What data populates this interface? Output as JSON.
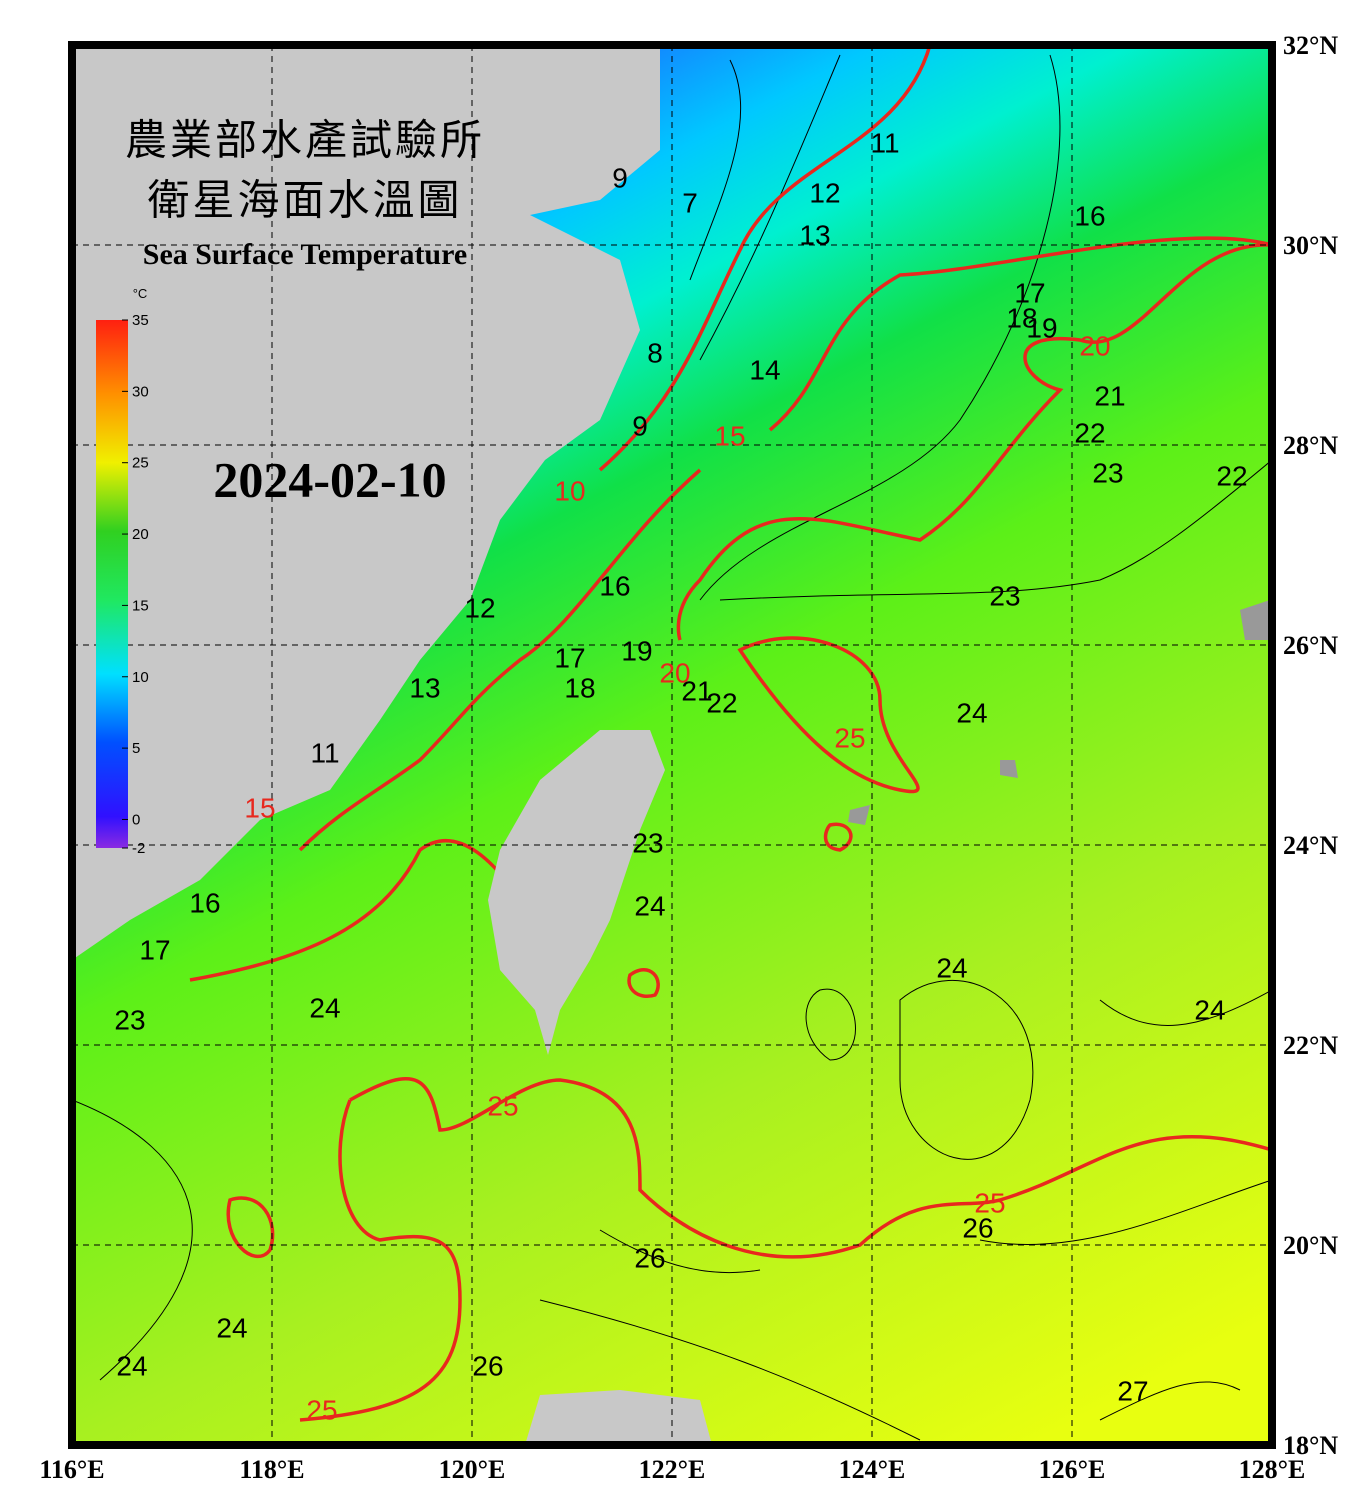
{
  "title_zh_1": "農業部水產試驗所",
  "title_zh_2": "衛星海面水溫圖",
  "title_en": "Sea Surface Temperature",
  "date": "2024-02-10",
  "colorbar": {
    "unit": "°C",
    "range": [
      -2,
      35
    ],
    "ticks": [
      -2,
      0,
      5,
      10,
      15,
      20,
      25,
      30,
      35
    ]
  },
  "map": {
    "lon_range": [
      116,
      128
    ],
    "lat_range": [
      18,
      32
    ],
    "lon_ticks": [
      {
        "value": 116,
        "label": "116°E"
      },
      {
        "value": 118,
        "label": "118°E"
      },
      {
        "value": 120,
        "label": "120°E"
      },
      {
        "value": 122,
        "label": "122°E"
      },
      {
        "value": 124,
        "label": "124°E"
      },
      {
        "value": 126,
        "label": "126°E"
      },
      {
        "value": 128,
        "label": "128°E"
      }
    ],
    "lat_ticks": [
      {
        "value": 18,
        "label": "18°N"
      },
      {
        "value": 20,
        "label": "20°N"
      },
      {
        "value": 22,
        "label": "22°N"
      },
      {
        "value": 24,
        "label": "24°N"
      },
      {
        "value": 26,
        "label": "26°N"
      },
      {
        "value": 28,
        "label": "28°N"
      },
      {
        "value": 30,
        "label": "30°N"
      },
      {
        "value": 32,
        "label": "32°N"
      }
    ],
    "contour_labels": [
      {
        "value": 11,
        "lon": 124.13,
        "lat": 31.0,
        "color": "#000"
      },
      {
        "value": 12,
        "lon": 123.53,
        "lat": 30.5,
        "color": "#000"
      },
      {
        "value": 13,
        "lon": 123.43,
        "lat": 30.08,
        "color": "#000"
      },
      {
        "value": 16,
        "lon": 126.18,
        "lat": 30.27,
        "color": "#000"
      },
      {
        "value": 17,
        "lon": 125.58,
        "lat": 29.5,
        "color": "#000"
      },
      {
        "value": 18,
        "lon": 125.5,
        "lat": 29.25,
        "color": "#000"
      },
      {
        "value": 19,
        "lon": 125.7,
        "lat": 29.15,
        "color": "#000"
      },
      {
        "value": 20,
        "lon": 126.23,
        "lat": 28.97,
        "color": "#e8281e"
      },
      {
        "value": 21,
        "lon": 126.38,
        "lat": 28.47,
        "color": "#000"
      },
      {
        "value": 22,
        "lon": 126.18,
        "lat": 28.1,
        "color": "#000"
      },
      {
        "value": 23,
        "lon": 126.36,
        "lat": 27.7,
        "color": "#000"
      },
      {
        "value": 22,
        "lon": 127.6,
        "lat": 27.67,
        "color": "#000"
      },
      {
        "value": 9,
        "lon": 121.48,
        "lat": 30.65,
        "color": "#000"
      },
      {
        "value": 7,
        "lon": 122.18,
        "lat": 30.4,
        "color": "#000"
      },
      {
        "value": 8,
        "lon": 121.83,
        "lat": 28.9,
        "color": "#000"
      },
      {
        "value": 9,
        "lon": 121.68,
        "lat": 28.17,
        "color": "#000"
      },
      {
        "value": 14,
        "lon": 122.93,
        "lat": 28.73,
        "color": "#000"
      },
      {
        "value": 15,
        "lon": 122.58,
        "lat": 28.07,
        "color": "#e8281e"
      },
      {
        "value": 10,
        "lon": 120.98,
        "lat": 27.52,
        "color": "#e8281e"
      },
      {
        "value": 16,
        "lon": 121.43,
        "lat": 26.57,
        "color": "#000"
      },
      {
        "value": 23,
        "lon": 125.33,
        "lat": 26.47,
        "color": "#000"
      },
      {
        "value": 19,
        "lon": 121.65,
        "lat": 25.92,
        "color": "#000"
      },
      {
        "value": 20,
        "lon": 122.03,
        "lat": 25.7,
        "color": "#e8281e"
      },
      {
        "value": 21,
        "lon": 122.25,
        "lat": 25.52,
        "color": "#000"
      },
      {
        "value": 22,
        "lon": 122.5,
        "lat": 25.4,
        "color": "#000"
      },
      {
        "value": 17,
        "lon": 120.98,
        "lat": 25.85,
        "color": "#000"
      },
      {
        "value": 18,
        "lon": 121.08,
        "lat": 25.55,
        "color": "#000"
      },
      {
        "value": 12,
        "lon": 120.08,
        "lat": 26.35,
        "color": "#000"
      },
      {
        "value": 24,
        "lon": 125.0,
        "lat": 25.3,
        "color": "#000"
      },
      {
        "value": 25,
        "lon": 123.78,
        "lat": 25.05,
        "color": "#e8281e"
      },
      {
        "value": 13,
        "lon": 119.53,
        "lat": 25.55,
        "color": "#000"
      },
      {
        "value": 11,
        "lon": 118.53,
        "lat": 24.9,
        "color": "#000"
      },
      {
        "value": 23,
        "lon": 121.76,
        "lat": 24.0,
        "color": "#000"
      },
      {
        "value": 15,
        "lon": 117.88,
        "lat": 24.35,
        "color": "#e8281e"
      },
      {
        "value": 24,
        "lon": 121.78,
        "lat": 23.37,
        "color": "#000"
      },
      {
        "value": 16,
        "lon": 117.33,
        "lat": 23.4,
        "color": "#000"
      },
      {
        "value": 17,
        "lon": 116.83,
        "lat": 22.93,
        "color": "#000"
      },
      {
        "value": 23,
        "lon": 116.58,
        "lat": 22.23,
        "color": "#000"
      },
      {
        "value": 24,
        "lon": 118.53,
        "lat": 22.35,
        "color": "#000"
      },
      {
        "value": 24,
        "lon": 124.8,
        "lat": 22.75,
        "color": "#000"
      },
      {
        "value": 24,
        "lon": 127.38,
        "lat": 22.33,
        "color": "#000"
      },
      {
        "value": 25,
        "lon": 120.31,
        "lat": 21.37,
        "color": "#e8281e"
      },
      {
        "value": 25,
        "lon": 125.18,
        "lat": 20.4,
        "color": "#e8281e"
      },
      {
        "value": 26,
        "lon": 125.06,
        "lat": 20.15,
        "color": "#000"
      },
      {
        "value": 26,
        "lon": 121.78,
        "lat": 19.85,
        "color": "#000"
      },
      {
        "value": 24,
        "lon": 117.6,
        "lat": 19.15,
        "color": "#000"
      },
      {
        "value": 24,
        "lon": 116.6,
        "lat": 18.77,
        "color": "#000"
      },
      {
        "value": 26,
        "lon": 120.16,
        "lat": 18.77,
        "color": "#000"
      },
      {
        "value": 25,
        "lon": 118.5,
        "lat": 18.33,
        "color": "#e8281e"
      },
      {
        "value": 27,
        "lon": 126.61,
        "lat": 18.52,
        "color": "#000"
      }
    ]
  }
}
